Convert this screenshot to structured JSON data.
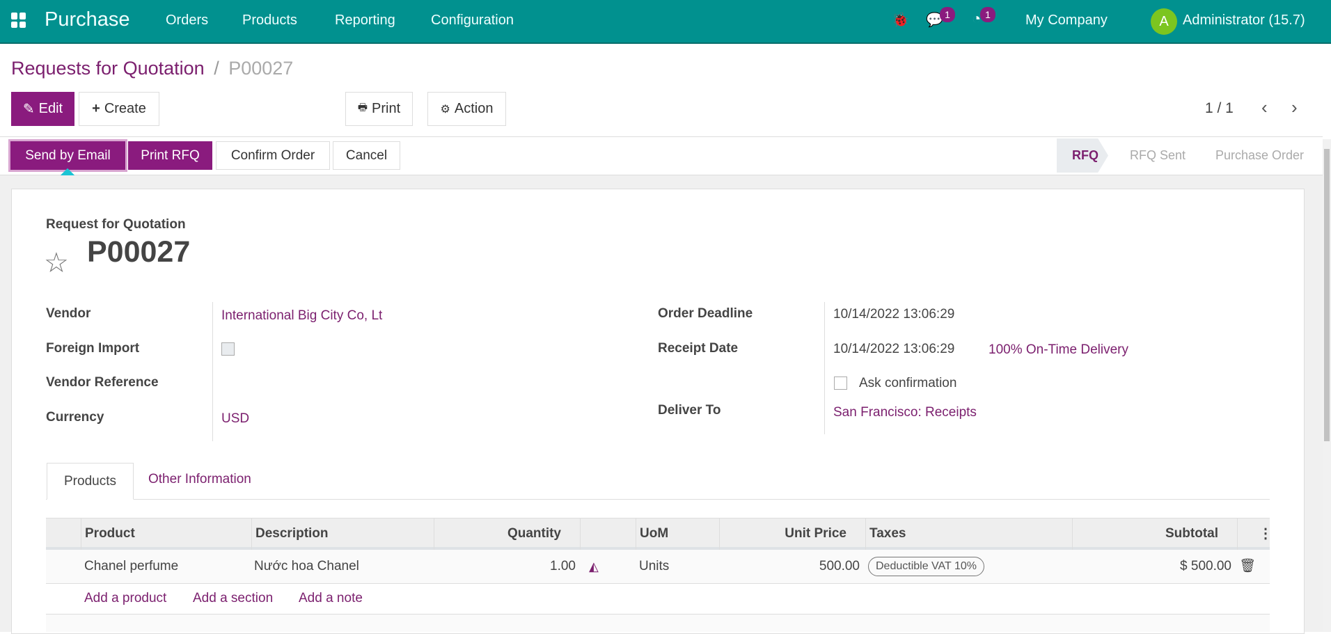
{
  "navbar": {
    "app_name": "Purchase",
    "menu": [
      "Orders",
      "Products",
      "Reporting",
      "Configuration"
    ],
    "messages_count": "1",
    "activities_count": "1",
    "company": "My Company",
    "avatar_letter": "A",
    "user": "Administrator (15.7)",
    "color": "#01918f"
  },
  "breadcrumb": {
    "parent": "Requests for Quotation",
    "separator": "/",
    "current": "P00027"
  },
  "control": {
    "edit": "Edit",
    "create": "Create",
    "print": "Print",
    "action": "Action",
    "pager": "1 / 1"
  },
  "statusbar": {
    "buttons": [
      "Send by Email",
      "Print RFQ",
      "Confirm Order",
      "Cancel"
    ],
    "stages": [
      "RFQ",
      "RFQ Sent",
      "Purchase Order"
    ],
    "active_stage": "RFQ"
  },
  "form": {
    "subtitle": "Request for Quotation",
    "name": "P00027",
    "left": [
      {
        "label": "Vendor",
        "value": "International Big City Co, Lt"
      },
      {
        "label": "Foreign Import",
        "value": ""
      },
      {
        "label": "Vendor Reference",
        "value": ""
      },
      {
        "label": "Currency",
        "value": "USD"
      }
    ],
    "right": [
      {
        "label": "Order Deadline",
        "value": "10/14/2022 13:06:29"
      },
      {
        "label": "Receipt Date",
        "value": "10/14/2022 13:06:29",
        "extra": "100% On-Time Delivery"
      },
      {
        "label": "",
        "value": "Ask confirmation"
      },
      {
        "label": "Deliver To",
        "value": "San Francisco: Receipts"
      }
    ]
  },
  "tabs": [
    "Products",
    "Other Information"
  ],
  "table": {
    "headers": [
      "Product",
      "Description",
      "Quantity",
      "UoM",
      "Unit Price",
      "Taxes",
      "Subtotal"
    ],
    "rows": [
      {
        "product": "Chanel perfume",
        "description": "Nước hoa Chanel",
        "quantity": "1.00",
        "uom": "Units",
        "unit_price": "500.00",
        "taxes": "Deductible VAT 10%",
        "subtotal": "$ 500.00"
      }
    ],
    "add_links": [
      "Add a product",
      "Add a section",
      "Add a note"
    ]
  },
  "accent": "#8a1b7e"
}
